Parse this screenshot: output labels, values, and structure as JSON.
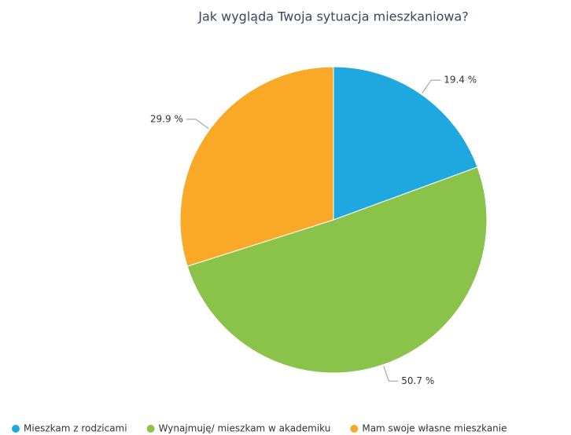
{
  "chart_data": {
    "type": "pie",
    "title": "Jak wygląda Twoja sytuacja mieszkaniowa?",
    "categories": [
      "Mieszkam z rodzicami",
      "Wynajmuję/ mieszkam w akademiku",
      "Mam swoje własne mieszkanie"
    ],
    "values": [
      19.4,
      50.7,
      29.9
    ],
    "value_labels": [
      "19.4 %",
      "50.7 %",
      "29.9 %"
    ],
    "colors": [
      "#1fa8e0",
      "#8bc34a",
      "#f9a828"
    ]
  }
}
